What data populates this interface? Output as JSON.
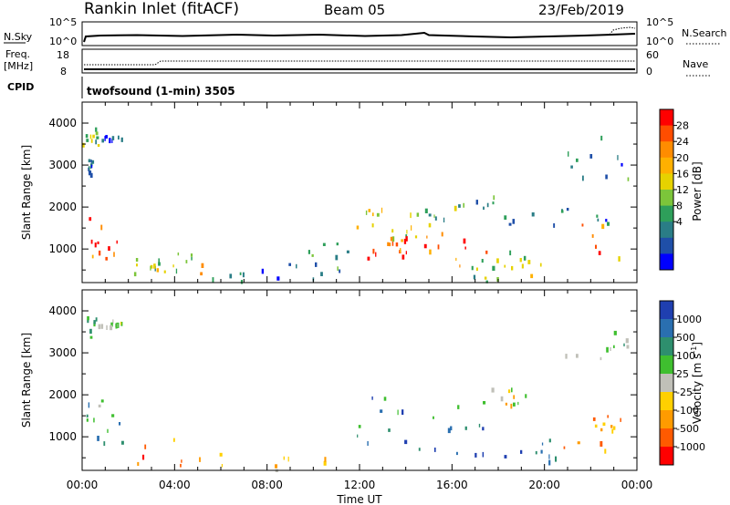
{
  "header": {
    "station": "Rankin Inlet (fitACF)",
    "beam": "Beam 05",
    "date": "23/Feb/2019"
  },
  "status_panels": {
    "nsky_label": "N.Sky",
    "nsky_ticks": [
      "10^5",
      "10^0"
    ],
    "nsearch_label": "N.Search",
    "nsearch_ticks": [
      "10^5",
      "10^0"
    ],
    "freq_label_line1": "Freq.",
    "freq_label_line2": "[MHz]",
    "freq_ticks": [
      "18",
      "8"
    ],
    "nave_label": "Nave",
    "nave_ticks": [
      "60",
      "0"
    ],
    "cpid_label": "CPID",
    "cpid_text": "twofsound (1-min) 3505"
  },
  "chart_data": [
    {
      "type": "heatmap",
      "name": "power",
      "ylabel": "Slant Range [km]",
      "y_ticks": [
        "4000",
        "3000",
        "2000",
        "1000"
      ],
      "ylim": [
        200,
        4500
      ],
      "xlim": [
        0,
        24
      ],
      "colorbar": {
        "label": "Power [dB]",
        "ticks": [
          "28",
          "24",
          "20",
          "16",
          "12",
          "8",
          "4"
        ],
        "colors": [
          "#ff0000",
          "#ff4d00",
          "#ff8c00",
          "#ffb000",
          "#e6d200",
          "#7cc53a",
          "#2e9f5a",
          "#2a7d86",
          "#1f4fa8",
          "#0000ff"
        ]
      },
      "echo_regions": [
        {
          "t": [
            0.0,
            1.7
          ],
          "r": [
            700,
            1900
          ],
          "level": 0.85
        },
        {
          "t": [
            0.0,
            0.7
          ],
          "r": [
            3400,
            3900
          ],
          "level": 0.45
        },
        {
          "t": [
            0.7,
            1.9
          ],
          "r": [
            3600,
            3800
          ],
          "level": 0.15
        },
        {
          "t": [
            0.2,
            0.4
          ],
          "r": [
            2800,
            3200
          ],
          "level": 0.2
        },
        {
          "t": [
            2.2,
            3.3
          ],
          "r": [
            300,
            900
          ],
          "level": 0.45
        },
        {
          "t": [
            3.3,
            5.3
          ],
          "r": [
            400,
            1000
          ],
          "level": 0.55
        },
        {
          "t": [
            5.3,
            10.5
          ],
          "r": [
            220,
            700
          ],
          "level": 0.25
        },
        {
          "t": [
            9.0,
            11.5
          ],
          "r": [
            500,
            1300
          ],
          "level": 0.3
        },
        {
          "t": [
            11.5,
            14.5
          ],
          "r": [
            700,
            2000
          ],
          "level": 0.55
        },
        {
          "t": [
            11.8,
            14.2
          ],
          "r": [
            800,
            1400
          ],
          "level": 0.9
        },
        {
          "t": [
            13.0,
            14.5
          ],
          "r": [
            1000,
            1600
          ],
          "level": 0.7
        },
        {
          "t": [
            14.5,
            18.0
          ],
          "r": [
            600,
            1500
          ],
          "level": 0.85
        },
        {
          "t": [
            16.0,
            18.3
          ],
          "r": [
            1800,
            2300
          ],
          "level": 0.35
        },
        {
          "t": [
            15.5,
            18.0
          ],
          "r": [
            220,
            800
          ],
          "level": 0.4
        },
        {
          "t": [
            18.0,
            20.3
          ],
          "r": [
            400,
            1000
          ],
          "level": 0.5
        },
        {
          "t": [
            18.0,
            23.0
          ],
          "r": [
            1500,
            2000
          ],
          "level": 0.2
        },
        {
          "t": [
            20.5,
            24.0
          ],
          "r": [
            700,
            1700
          ],
          "level": 0.75
        },
        {
          "t": [
            20.5,
            24.0
          ],
          "r": [
            2700,
            3800
          ],
          "level": 0.25
        },
        {
          "t": [
            14.8,
            15.8
          ],
          "r": [
            1600,
            2100
          ],
          "level": 0.4
        }
      ]
    },
    {
      "type": "heatmap",
      "name": "velocity",
      "ylabel": "Slant Range [km]",
      "xlabel": "Time UT",
      "x_ticks": [
        "00:00",
        "04:00",
        "08:00",
        "12:00",
        "16:00",
        "20:00",
        "00:00"
      ],
      "y_ticks": [
        "4000",
        "3000",
        "2000",
        "1000"
      ],
      "ylim": [
        200,
        4500
      ],
      "xlim": [
        0,
        24
      ],
      "colorbar": {
        "label": "Velocity [m s-1]",
        "unit_main": "Velocity [m s",
        "unit_exp": "-1",
        "ticks": [
          "1000",
          "500",
          "100",
          "25",
          "-25",
          "-100",
          "-500",
          "-1000"
        ],
        "colors": [
          "#1f3fb0",
          "#2a6fb0",
          "#2e8f6e",
          "#3fbf2f",
          "#c0c0b8",
          "#ffd000",
          "#ff9b00",
          "#ff5a00",
          "#ff0000"
        ]
      },
      "echo_regions": [
        {
          "t": [
            0.0,
            1.7
          ],
          "r": [
            700,
            1900
          ],
          "level": 0.7
        },
        {
          "t": [
            0.0,
            0.7
          ],
          "r": [
            3400,
            3900
          ],
          "level": 0.65
        },
        {
          "t": [
            0.7,
            1.9
          ],
          "r": [
            3600,
            3800
          ],
          "level": 0.55
        },
        {
          "t": [
            2.2,
            5.3
          ],
          "r": [
            300,
            1000
          ],
          "level": 0.2
        },
        {
          "t": [
            5.3,
            10.5
          ],
          "r": [
            220,
            700
          ],
          "level": 0.35
        },
        {
          "t": [
            11.5,
            15.0
          ],
          "r": [
            700,
            2000
          ],
          "level": 0.75
        },
        {
          "t": [
            15.0,
            18.2
          ],
          "r": [
            600,
            1500
          ],
          "level": 0.8
        },
        {
          "t": [
            16.0,
            20.5
          ],
          "r": [
            1700,
            2200
          ],
          "level": 0.45
        },
        {
          "t": [
            18.0,
            20.5
          ],
          "r": [
            400,
            1000
          ],
          "level": 0.85
        },
        {
          "t": [
            20.5,
            24.0
          ],
          "r": [
            700,
            1600
          ],
          "level": 0.3
        },
        {
          "t": [
            20.5,
            24.0
          ],
          "r": [
            2700,
            3800
          ],
          "level": 0.65
        }
      ]
    }
  ]
}
